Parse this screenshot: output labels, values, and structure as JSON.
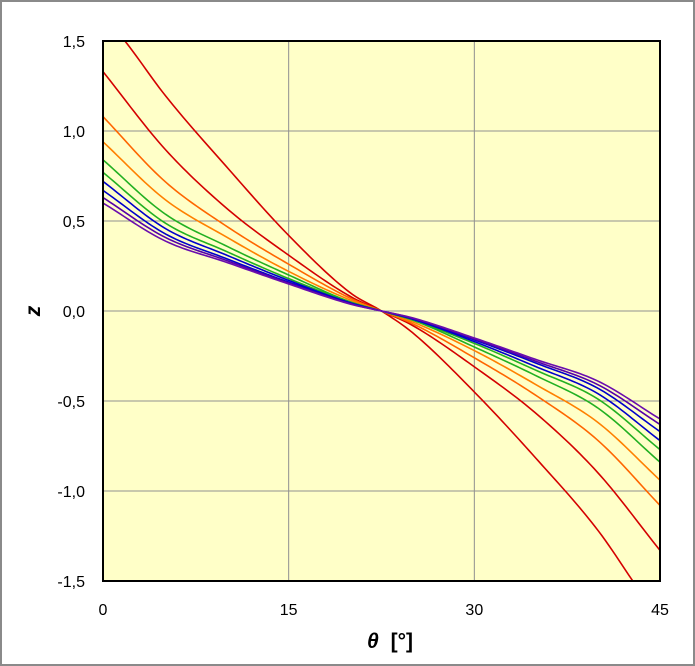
{
  "chart_data": {
    "type": "line",
    "title": "",
    "xlabel_symbol": "θ",
    "xlabel_unit": "[°]",
    "ylabel": "z",
    "xlim": [
      0,
      45
    ],
    "ylim": [
      -1.5,
      1.5
    ],
    "x_ticks": [
      "0",
      "15",
      "30",
      "45"
    ],
    "y_ticks": [
      "1,5",
      "1,0",
      "0,5",
      "0,0",
      "-0,5",
      "-1,0",
      "-1,5"
    ],
    "grid": true,
    "legend": "none",
    "plot_background": "#ffffc8",
    "gridline_color": "#909090",
    "series": [
      {
        "color": "#d40000",
        "x": [
          0,
          2,
          5,
          10,
          15,
          20,
          22.5,
          25,
          30,
          35,
          40,
          43
        ],
        "y": [
          1.65,
          1.48,
          1.2,
          0.8,
          0.42,
          0.1,
          0.0,
          -0.12,
          -0.45,
          -0.82,
          -1.22,
          -1.52
        ]
      },
      {
        "color": "#d40000",
        "x": [
          0,
          5,
          10,
          15,
          20,
          22.5,
          25,
          30,
          35,
          40,
          45
        ],
        "y": [
          1.33,
          0.9,
          0.57,
          0.31,
          0.08,
          0.0,
          -0.08,
          -0.31,
          -0.57,
          -0.9,
          -1.33
        ]
      },
      {
        "color": "#ff6600",
        "x": [
          0,
          5,
          10,
          15,
          20,
          22.5,
          25,
          30,
          35,
          40,
          45
        ],
        "y": [
          1.08,
          0.72,
          0.47,
          0.26,
          0.07,
          0.0,
          -0.07,
          -0.26,
          -0.47,
          -0.72,
          -1.08
        ]
      },
      {
        "color": "#ff8000",
        "x": [
          0,
          5,
          10,
          15,
          20,
          22.5,
          25,
          30,
          35,
          40,
          45
        ],
        "y": [
          0.94,
          0.62,
          0.41,
          0.22,
          0.06,
          0.0,
          -0.06,
          -0.22,
          -0.41,
          -0.62,
          -0.94
        ]
      },
      {
        "color": "#22b022",
        "x": [
          0,
          5,
          10,
          15,
          20,
          22.5,
          25,
          30,
          35,
          40,
          45
        ],
        "y": [
          0.84,
          0.54,
          0.36,
          0.2,
          0.05,
          0.0,
          -0.05,
          -0.2,
          -0.36,
          -0.54,
          -0.84
        ]
      },
      {
        "color": "#22b022",
        "x": [
          0,
          5,
          10,
          15,
          20,
          22.5,
          25,
          30,
          35,
          40,
          45
        ],
        "y": [
          0.77,
          0.49,
          0.33,
          0.18,
          0.05,
          0.0,
          -0.05,
          -0.18,
          -0.33,
          -0.49,
          -0.77
        ]
      },
      {
        "color": "#0000cc",
        "x": [
          0,
          5,
          10,
          15,
          20,
          22.5,
          25,
          30,
          35,
          40,
          45
        ],
        "y": [
          0.72,
          0.46,
          0.31,
          0.17,
          0.045,
          0.0,
          -0.045,
          -0.17,
          -0.31,
          -0.46,
          -0.72
        ]
      },
      {
        "color": "#0000cc",
        "x": [
          0,
          5,
          10,
          15,
          20,
          22.5,
          25,
          30,
          35,
          40,
          45
        ],
        "y": [
          0.67,
          0.43,
          0.29,
          0.16,
          0.043,
          0.0,
          -0.043,
          -0.16,
          -0.29,
          -0.43,
          -0.67
        ]
      },
      {
        "color": "#5500aa",
        "x": [
          0,
          5,
          10,
          15,
          20,
          22.5,
          25,
          30,
          35,
          40,
          45
        ],
        "y": [
          0.63,
          0.41,
          0.28,
          0.155,
          0.04,
          0.0,
          -0.04,
          -0.155,
          -0.28,
          -0.41,
          -0.63
        ]
      },
      {
        "color": "#6a0dad",
        "x": [
          0,
          5,
          10,
          15,
          20,
          22.5,
          25,
          30,
          35,
          40,
          45
        ],
        "y": [
          0.6,
          0.39,
          0.27,
          0.15,
          0.038,
          0.0,
          -0.038,
          -0.15,
          -0.27,
          -0.39,
          -0.6
        ]
      }
    ]
  }
}
